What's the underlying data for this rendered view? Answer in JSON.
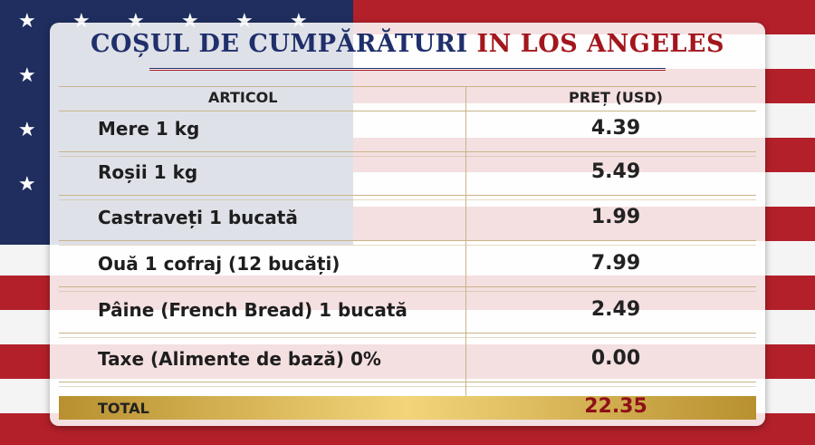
{
  "header": {
    "title_part1": "COȘUL DE CUMPĂRĂTURI",
    "title_part2": "IN LOS ANGELES"
  },
  "table": {
    "columns": [
      "ARTICOL",
      "PREȚ (USD)"
    ],
    "rows": [
      [
        "Mere 1 kg",
        "4.39"
      ],
      [
        "Roșii 1 kg",
        "5.49"
      ],
      [
        "Castraveți 1 bucată",
        "1.99"
      ],
      [
        "Ouă 1 cofraj (12 bucăți)",
        "7.99"
      ],
      [
        "Pâine (French Bread) 1 bucată",
        "2.49"
      ],
      [
        "Taxe (Alimente de bază) 0%",
        "0.00"
      ]
    ],
    "total": [
      "TOTAL",
      "22.35"
    ]
  }
}
